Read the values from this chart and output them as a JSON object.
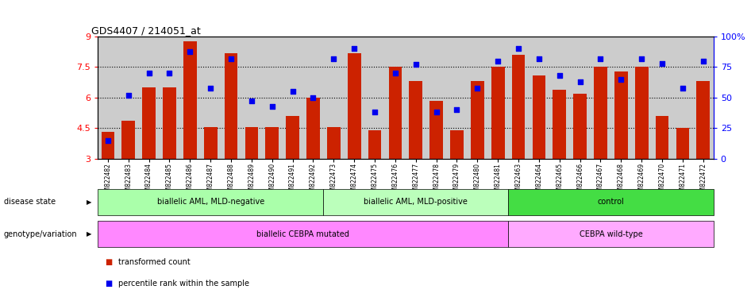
{
  "title": "GDS4407 / 214051_at",
  "samples": [
    "GSM822482",
    "GSM822483",
    "GSM822484",
    "GSM822485",
    "GSM822486",
    "GSM822487",
    "GSM822488",
    "GSM822489",
    "GSM822490",
    "GSM822491",
    "GSM822492",
    "GSM822473",
    "GSM822474",
    "GSM822475",
    "GSM822476",
    "GSM822477",
    "GSM822478",
    "GSM822479",
    "GSM822480",
    "GSM822481",
    "GSM822463",
    "GSM822464",
    "GSM822465",
    "GSM822466",
    "GSM822467",
    "GSM822468",
    "GSM822469",
    "GSM822470",
    "GSM822471",
    "GSM822472"
  ],
  "bar_values": [
    4.3,
    4.85,
    6.5,
    6.5,
    8.75,
    4.55,
    8.2,
    4.55,
    4.55,
    5.1,
    6.0,
    4.55,
    8.2,
    4.4,
    7.5,
    6.8,
    5.85,
    4.4,
    6.8,
    7.5,
    8.1,
    7.1,
    6.4,
    6.2,
    7.5,
    7.3,
    7.5,
    5.1,
    4.5,
    6.8
  ],
  "dot_values": [
    15,
    52,
    70,
    70,
    88,
    58,
    82,
    47,
    43,
    55,
    50,
    82,
    90,
    38,
    70,
    77,
    38,
    40,
    58,
    80,
    90,
    82,
    68,
    63,
    82,
    65,
    82,
    78,
    58,
    80
  ],
  "bar_color": "#CC2200",
  "dot_color": "#0000EE",
  "ylim_left": [
    3,
    9
  ],
  "ylim_right": [
    0,
    100
  ],
  "yticks_left": [
    3,
    4.5,
    6,
    7.5,
    9
  ],
  "ytick_labels_left": [
    "3",
    "4.5",
    "6",
    "7.5",
    "9"
  ],
  "yticks_right": [
    0,
    25,
    50,
    75,
    100
  ],
  "ytick_labels_right": [
    "0",
    "25",
    "50",
    "75",
    "100%"
  ],
  "grid_values": [
    4.5,
    6.0,
    7.5
  ],
  "disease_state_groups": [
    {
      "label": "biallelic AML, MLD-negative",
      "start": 0,
      "end": 11,
      "color": "#AAFFAA"
    },
    {
      "label": "biallelic AML, MLD-positive",
      "start": 11,
      "end": 20,
      "color": "#BBFFBB"
    },
    {
      "label": "control",
      "start": 20,
      "end": 30,
      "color": "#44DD44"
    }
  ],
  "genotype_groups": [
    {
      "label": "biallelic CEBPA mutated",
      "start": 0,
      "end": 20,
      "color": "#FF88FF"
    },
    {
      "label": "CEBPA wild-type",
      "start": 20,
      "end": 30,
      "color": "#FFAAFF"
    }
  ],
  "legend_items": [
    {
      "label": "transformed count",
      "color": "#CC2200"
    },
    {
      "label": "percentile rank within the sample",
      "color": "#0000EE"
    }
  ],
  "left_labels": [
    "disease state",
    "genotype/variation"
  ],
  "bg_color": "#CCCCCC",
  "fig_width": 9.46,
  "fig_height": 3.84
}
